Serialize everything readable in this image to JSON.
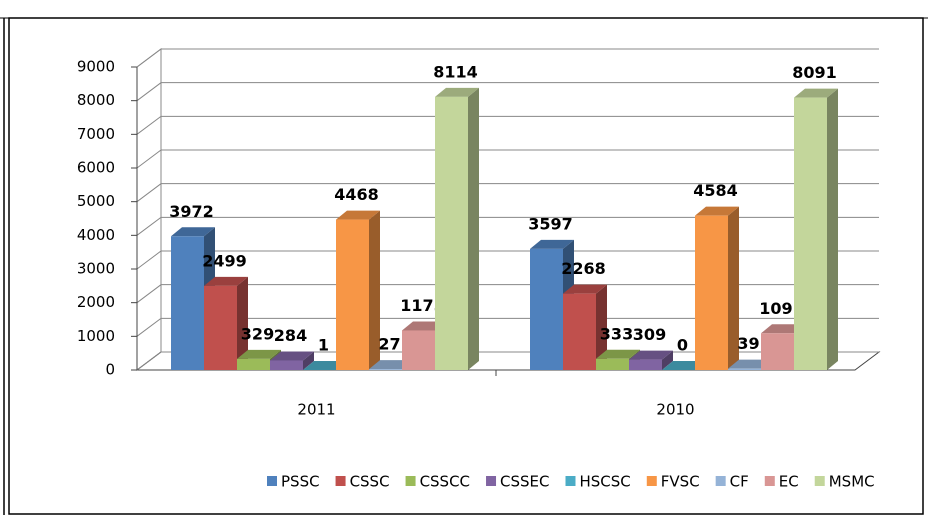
{
  "chart_data": {
    "type": "bar3d",
    "categories": [
      "2011",
      "2010"
    ],
    "series": [
      {
        "name": "PSSC",
        "color": "#4f81bd",
        "values": [
          3972,
          3597
        ]
      },
      {
        "name": "CSSC",
        "color": "#c0504d",
        "values": [
          2499,
          2268
        ]
      },
      {
        "name": "CSSCC",
        "color": "#9bbb59",
        "values": [
          329,
          333
        ]
      },
      {
        "name": "CSSEC",
        "color": "#8064a2",
        "values": [
          284,
          309
        ]
      },
      {
        "name": "HSCSC",
        "color": "#4bacc6",
        "values": [
          1,
          0
        ]
      },
      {
        "name": "FVSC",
        "color": "#f79646",
        "values": [
          4468,
          4584
        ]
      },
      {
        "name": "CF",
        "color": "#95b3d7",
        "values": [
          27,
          39
        ]
      },
      {
        "name": "EC",
        "color": "#d99694",
        "values": [
          1175,
          1091
        ]
      },
      {
        "name": "MSMC",
        "color": "#c3d69b",
        "values": [
          8114,
          8091
        ]
      }
    ],
    "ylim": [
      0,
      9000
    ],
    "yticks": [
      0,
      1000,
      2000,
      3000,
      4000,
      5000,
      6000,
      7000,
      8000,
      9000
    ],
    "grid": true,
    "legend": "bottom"
  }
}
